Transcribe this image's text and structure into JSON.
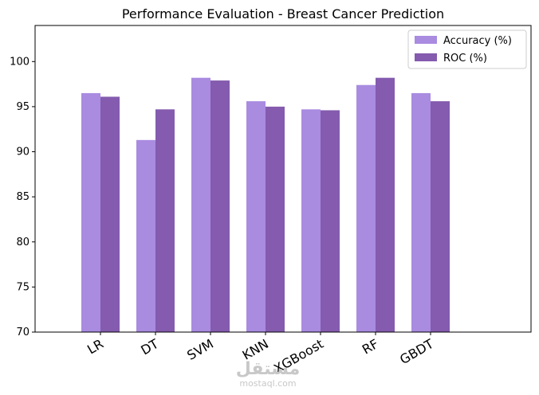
{
  "chart_data": {
    "type": "bar",
    "title": "Performance Evaluation - Breast Cancer Prediction",
    "xlabel": "",
    "ylabel": "",
    "categories": [
      "LR",
      "DT",
      "SVM",
      "KNN",
      "XGBoost",
      "RF",
      "GBDT"
    ],
    "series": [
      {
        "name": "Accuracy (%)",
        "values": [
          96.5,
          91.3,
          98.2,
          95.6,
          94.7,
          97.4,
          96.5
        ],
        "color": "#a98be0"
      },
      {
        "name": "ROC (%)",
        "values": [
          96.1,
          94.7,
          97.9,
          95.0,
          94.6,
          98.2,
          95.6
        ],
        "color": "#845bae"
      }
    ],
    "ylim": [
      70,
      104
    ],
    "yticks": [
      70,
      75,
      80,
      85,
      90,
      95,
      100
    ],
    "grid": false,
    "legend_position": "top-right",
    "xtick_rotation": -30
  },
  "watermark": {
    "logo_text": "مستقل",
    "url_text": "mostaql.com"
  }
}
